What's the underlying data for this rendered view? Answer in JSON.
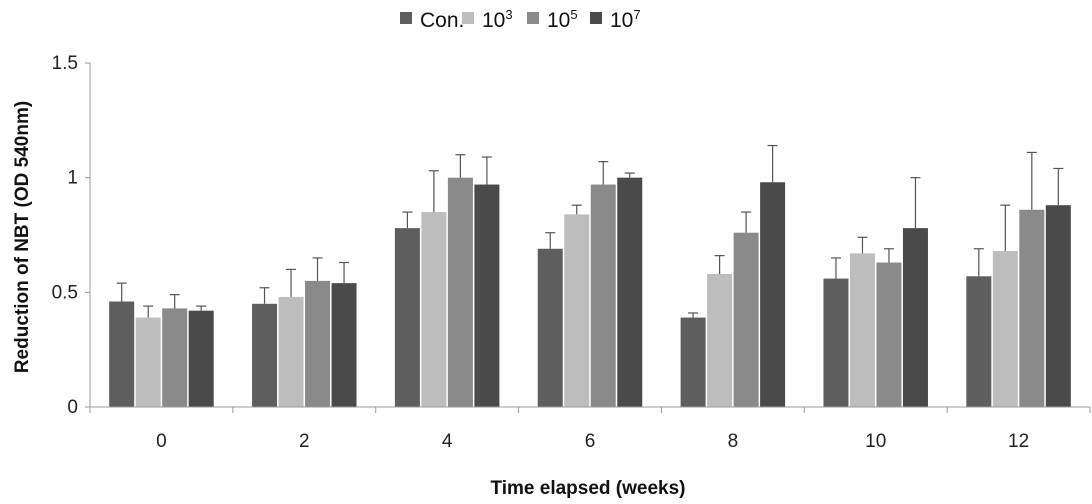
{
  "chart_data": {
    "type": "bar",
    "xlabel": "Time elapsed (weeks)",
    "ylabel": "Reduction of NBT (OD 540nm)",
    "ylim": [
      0,
      1.5
    ],
    "yticks": [
      "0",
      "0.5",
      "1",
      "1.5"
    ],
    "categories": [
      "0",
      "2",
      "4",
      "6",
      "8",
      "10",
      "12"
    ],
    "grid": false,
    "legend_position": "top",
    "series": [
      {
        "name": "Con.",
        "legend_base": "Con.",
        "legend_sup": "",
        "color": "#5e5e5e",
        "values": [
          0.46,
          0.45,
          0.78,
          0.69,
          0.39,
          0.56,
          0.57
        ],
        "errors": [
          0.08,
          0.07,
          0.07,
          0.07,
          0.02,
          0.09,
          0.12
        ]
      },
      {
        "name": "10^3",
        "legend_base": "10",
        "legend_sup": "3",
        "color": "#bdbdbd",
        "values": [
          0.39,
          0.48,
          0.85,
          0.84,
          0.58,
          0.67,
          0.68
        ],
        "errors": [
          0.05,
          0.12,
          0.18,
          0.04,
          0.08,
          0.07,
          0.2
        ]
      },
      {
        "name": "10^5",
        "legend_base": "10",
        "legend_sup": "5",
        "color": "#8a8a8a",
        "values": [
          0.43,
          0.55,
          1.0,
          0.97,
          0.76,
          0.63,
          0.86
        ],
        "errors": [
          0.06,
          0.1,
          0.1,
          0.1,
          0.09,
          0.06,
          0.25
        ]
      },
      {
        "name": "10^7",
        "legend_base": "10",
        "legend_sup": "7",
        "color": "#4a4a4a",
        "values": [
          0.42,
          0.54,
          0.97,
          1.0,
          0.98,
          0.78,
          0.88
        ],
        "errors": [
          0.02,
          0.09,
          0.12,
          0.02,
          0.16,
          0.22,
          0.16
        ]
      }
    ]
  }
}
